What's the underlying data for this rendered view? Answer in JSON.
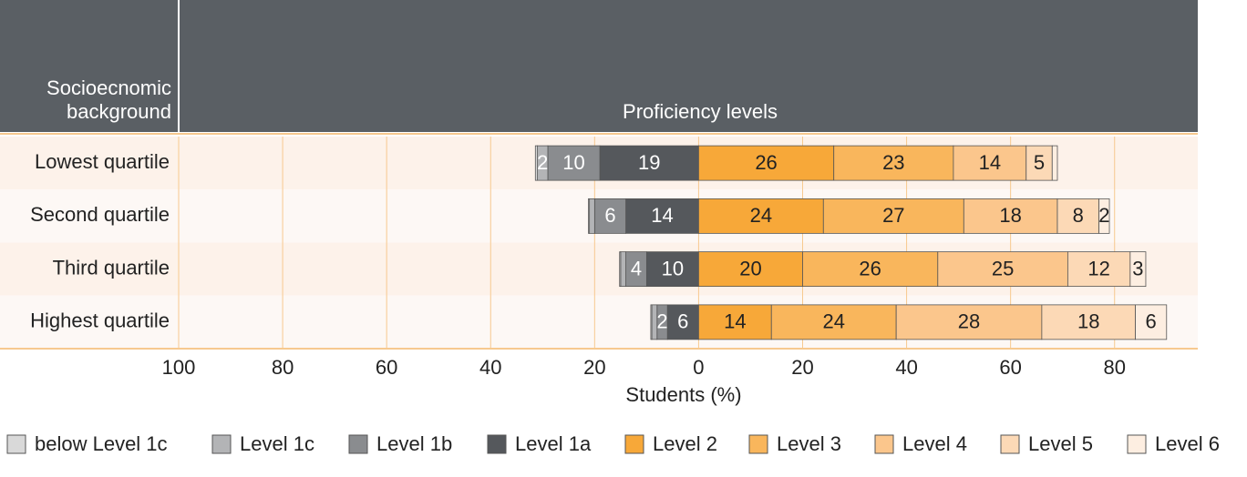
{
  "chart_data": {
    "type": "diverging-stacked-bar",
    "row_header": [
      "Socioecnomic",
      "background"
    ],
    "column_header": "Proficiency levels",
    "x_label": "Students (%)",
    "categories": [
      "Lowest quartile",
      "Second quartile",
      "Third quartile",
      "Highest quartile"
    ],
    "xlim": [
      -100,
      96
    ],
    "xticks": [
      {
        "value": -100,
        "label": "100"
      },
      {
        "value": -80,
        "label": "80"
      },
      {
        "value": -60,
        "label": "60"
      },
      {
        "value": -40,
        "label": "40"
      },
      {
        "value": -20,
        "label": "20"
      },
      0,
      20,
      40,
      60,
      80
    ],
    "grid": true,
    "series": [
      {
        "name": "below Level 1c",
        "color": "#d9d9d9",
        "values": [
          -0.4,
          -0.2,
          -0.2,
          -0.2
        ],
        "value_labels": [
          null,
          null,
          null,
          null
        ]
      },
      {
        "name": "Level 1c",
        "color": "#b3b4b6",
        "values": [
          -2,
          -1,
          -1,
          -1
        ],
        "value_labels": [
          "2",
          null,
          null,
          null
        ]
      },
      {
        "name": "Level 1b",
        "color": "#8a8c8f",
        "values": [
          -10,
          -6,
          -4,
          -2
        ],
        "value_labels": [
          "10",
          "6",
          "4",
          "2"
        ]
      },
      {
        "name": "Level 1a",
        "color": "#55585c",
        "values": [
          -19,
          -14,
          -10,
          -6
        ],
        "value_labels": [
          "19",
          "14",
          "10",
          "6"
        ]
      },
      {
        "name": "Level 2",
        "color": "#f7a839",
        "values": [
          26,
          24,
          20,
          14
        ],
        "value_labels": [
          "26",
          "24",
          "20",
          "14"
        ]
      },
      {
        "name": "Level 3",
        "color": "#f9b65c",
        "values": [
          23,
          27,
          26,
          24
        ],
        "value_labels": [
          "23",
          "27",
          "26",
          "24"
        ]
      },
      {
        "name": "Level 4",
        "color": "#fbc68c",
        "values": [
          14,
          18,
          25,
          28
        ],
        "value_labels": [
          "14",
          "18",
          "25",
          "28"
        ]
      },
      {
        "name": "Level 5",
        "color": "#fcd9b6",
        "values": [
          5,
          8,
          12,
          18
        ],
        "value_labels": [
          "5",
          "8",
          "12",
          "18"
        ]
      },
      {
        "name": "Level 6",
        "color": "#fdeee1",
        "values": [
          1,
          2,
          3,
          6
        ],
        "value_labels": [
          null,
          "2",
          "3",
          "6"
        ]
      }
    ]
  }
}
